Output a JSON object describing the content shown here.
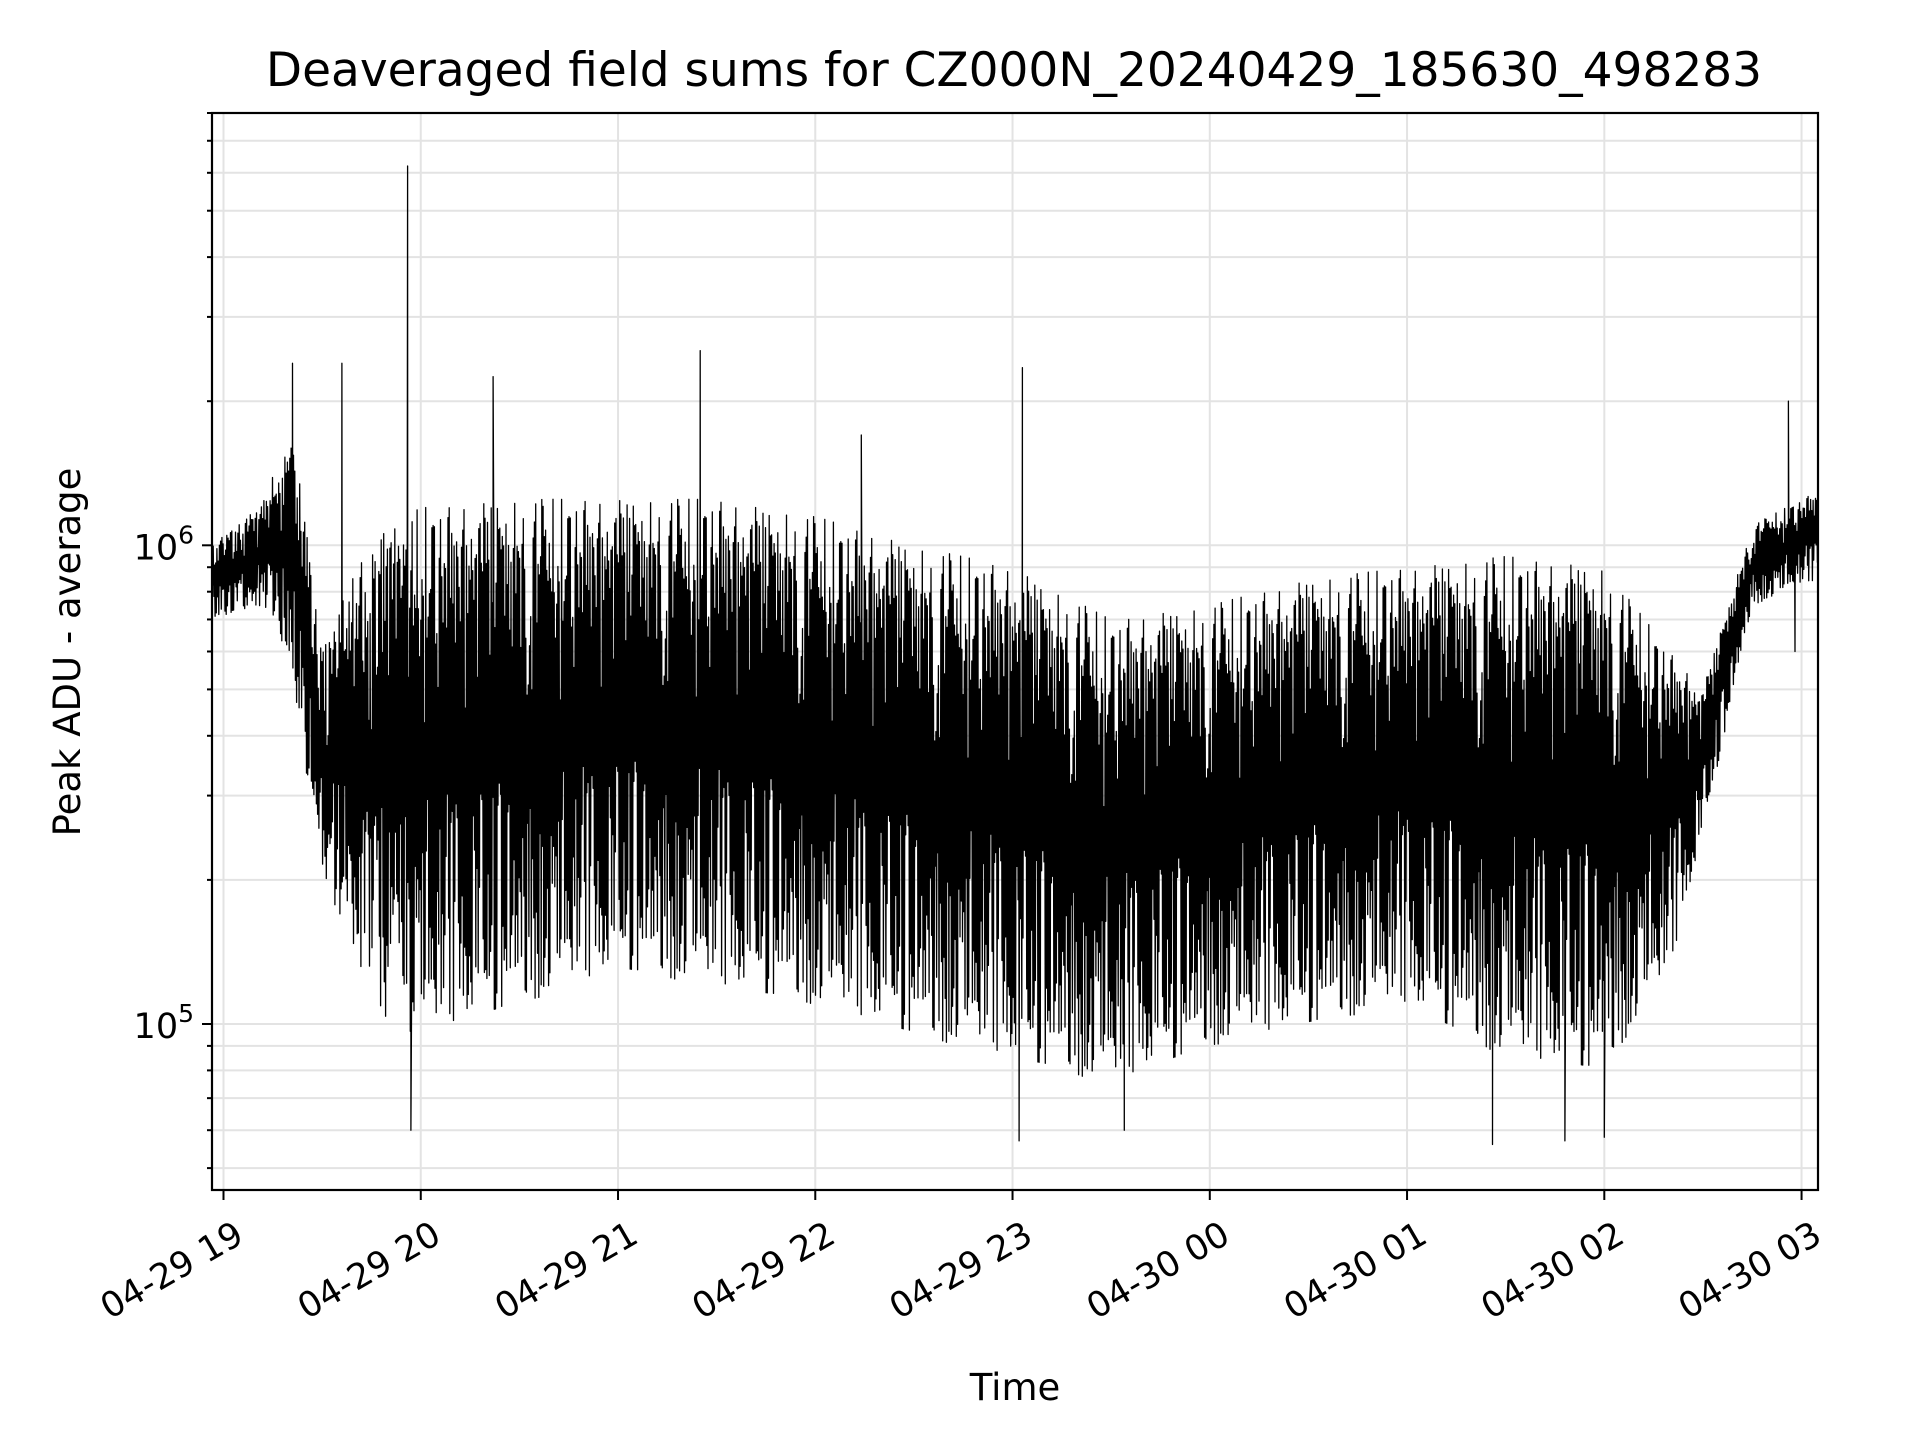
{
  "chart_data": {
    "type": "line",
    "title": "Deaveraged field sums for CZ000N_20240429_185630_498283",
    "xlabel": "Time",
    "ylabel": "Peak ADU - average",
    "y_scale": "log",
    "ylim": [
      45000,
      8000000
    ],
    "xlim": [
      "2024-04-29 18:56:30",
      "2024-04-30 03:05:00"
    ],
    "grid": true,
    "x_ticks": [
      {
        "t": "2024-04-29 19:00",
        "label": "04-29 19"
      },
      {
        "t": "2024-04-29 20:00",
        "label": "04-29 20"
      },
      {
        "t": "2024-04-29 21:00",
        "label": "04-29 21"
      },
      {
        "t": "2024-04-29 22:00",
        "label": "04-29 22"
      },
      {
        "t": "2024-04-29 23:00",
        "label": "04-29 23"
      },
      {
        "t": "2024-04-30 00:00",
        "label": "04-30 00"
      },
      {
        "t": "2024-04-30 01:00",
        "label": "04-30 01"
      },
      {
        "t": "2024-04-30 02:00",
        "label": "04-30 02"
      },
      {
        "t": "2024-04-30 03:00",
        "label": "04-30 03"
      }
    ],
    "y_major_ticks": [
      {
        "value": 100000,
        "base": "10",
        "exp": "5"
      },
      {
        "value": 1000000,
        "base": "10",
        "exp": "6"
      }
    ],
    "series": [
      {
        "color": "#000000",
        "envelope": [
          {
            "t": "2024-04-29 18:56",
            "low": 700000,
            "high": 1000000
          },
          {
            "t": "2024-04-29 19:10",
            "low": 750000,
            "high": 1200000
          },
          {
            "t": "2024-04-29 19:20",
            "low": 600000,
            "high": 1700000
          },
          {
            "t": "2024-04-29 19:24",
            "low": 380000,
            "high": 1300000
          },
          {
            "t": "2024-04-29 19:30",
            "low": 200000,
            "high": 600000
          },
          {
            "t": "2024-04-29 19:40",
            "low": 140000,
            "high": 900000
          },
          {
            "t": "2024-04-29 19:50",
            "low": 100000,
            "high": 1100000
          },
          {
            "t": "2024-04-29 20:00",
            "low": 95000,
            "high": 1200000
          },
          {
            "t": "2024-04-29 20:30",
            "low": 110000,
            "high": 1250000
          },
          {
            "t": "2024-04-29 21:00",
            "low": 130000,
            "high": 1250000
          },
          {
            "t": "2024-04-29 21:30",
            "low": 120000,
            "high": 1250000
          },
          {
            "t": "2024-04-29 22:00",
            "low": 110000,
            "high": 1150000
          },
          {
            "t": "2024-04-29 22:30",
            "low": 95000,
            "high": 1000000
          },
          {
            "t": "2024-04-29 23:00",
            "low": 85000,
            "high": 900000
          },
          {
            "t": "2024-04-29 23:30",
            "low": 75000,
            "high": 700000
          },
          {
            "t": "2024-04-30 00:00",
            "low": 90000,
            "high": 750000
          },
          {
            "t": "2024-04-30 00:30",
            "low": 100000,
            "high": 850000
          },
          {
            "t": "2024-04-30 01:00",
            "low": 110000,
            "high": 900000
          },
          {
            "t": "2024-04-30 01:30",
            "low": 85000,
            "high": 950000
          },
          {
            "t": "2024-04-30 02:00",
            "low": 80000,
            "high": 900000
          },
          {
            "t": "2024-04-30 02:20",
            "low": 130000,
            "high": 600000
          },
          {
            "t": "2024-04-30 02:30",
            "low": 250000,
            "high": 500000
          },
          {
            "t": "2024-04-30 02:45",
            "low": 750000,
            "high": 1100000
          },
          {
            "t": "2024-04-30 03:05",
            "low": 850000,
            "high": 1300000
          }
        ],
        "spikes": [
          {
            "t": "2024-04-29 19:21",
            "value": 2400000
          },
          {
            "t": "2024-04-29 19:36",
            "value": 2400000
          },
          {
            "t": "2024-04-29 19:56",
            "value": 6200000
          },
          {
            "t": "2024-04-29 19:57",
            "value": 60000
          },
          {
            "t": "2024-04-29 20:22",
            "value": 2250000
          },
          {
            "t": "2024-04-29 21:25",
            "value": 2550000
          },
          {
            "t": "2024-04-29 22:14",
            "value": 1700000
          },
          {
            "t": "2024-04-29 23:03",
            "value": 2350000
          },
          {
            "t": "2024-04-29 23:02",
            "value": 57000
          },
          {
            "t": "2024-04-29 23:34",
            "value": 60000
          },
          {
            "t": "2024-04-30 01:26",
            "value": 56000
          },
          {
            "t": "2024-04-30 01:48",
            "value": 57000
          },
          {
            "t": "2024-04-30 02:00",
            "value": 58000
          },
          {
            "t": "2024-04-30 02:56",
            "value": 2000000
          },
          {
            "t": "2024-04-30 02:58",
            "value": 600000
          }
        ]
      }
    ]
  }
}
